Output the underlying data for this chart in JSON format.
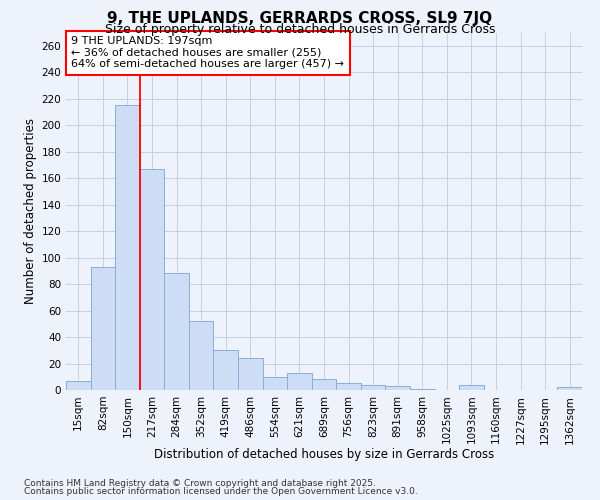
{
  "title1": "9, THE UPLANDS, GERRARDS CROSS, SL9 7JQ",
  "title2": "Size of property relative to detached houses in Gerrards Cross",
  "xlabel": "Distribution of detached houses by size in Gerrards Cross",
  "ylabel": "Number of detached properties",
  "categories": [
    "15sqm",
    "82sqm",
    "150sqm",
    "217sqm",
    "284sqm",
    "352sqm",
    "419sqm",
    "486sqm",
    "554sqm",
    "621sqm",
    "689sqm",
    "756sqm",
    "823sqm",
    "891sqm",
    "958sqm",
    "1025sqm",
    "1093sqm",
    "1160sqm",
    "1227sqm",
    "1295sqm",
    "1362sqm"
  ],
  "values": [
    7,
    93,
    215,
    167,
    88,
    52,
    30,
    24,
    10,
    13,
    8,
    5,
    4,
    3,
    1,
    0,
    4,
    0,
    0,
    0,
    2
  ],
  "bar_color": "#ccddf5",
  "bar_edgecolor": "#89aed4",
  "grid_color": "#c5d0e8",
  "background_color": "#eef2fb",
  "annotation_line1": "9 THE UPLANDS: 197sqm",
  "annotation_line2": "← 36% of detached houses are smaller (255)",
  "annotation_line3": "64% of semi-detached houses are larger (457) →",
  "property_line_x": 2.5,
  "ylim": [
    0,
    270
  ],
  "yticks": [
    0,
    20,
    40,
    60,
    80,
    100,
    120,
    140,
    160,
    180,
    200,
    220,
    240,
    260
  ],
  "footer_line1": "Contains HM Land Registry data © Crown copyright and database right 2025.",
  "footer_line2": "Contains public sector information licensed under the Open Government Licence v3.0.",
  "title1_fontsize": 11,
  "title2_fontsize": 9,
  "xlabel_fontsize": 8.5,
  "ylabel_fontsize": 8.5,
  "tick_fontsize": 7.5,
  "annotation_fontsize": 8,
  "footer_fontsize": 6.5
}
